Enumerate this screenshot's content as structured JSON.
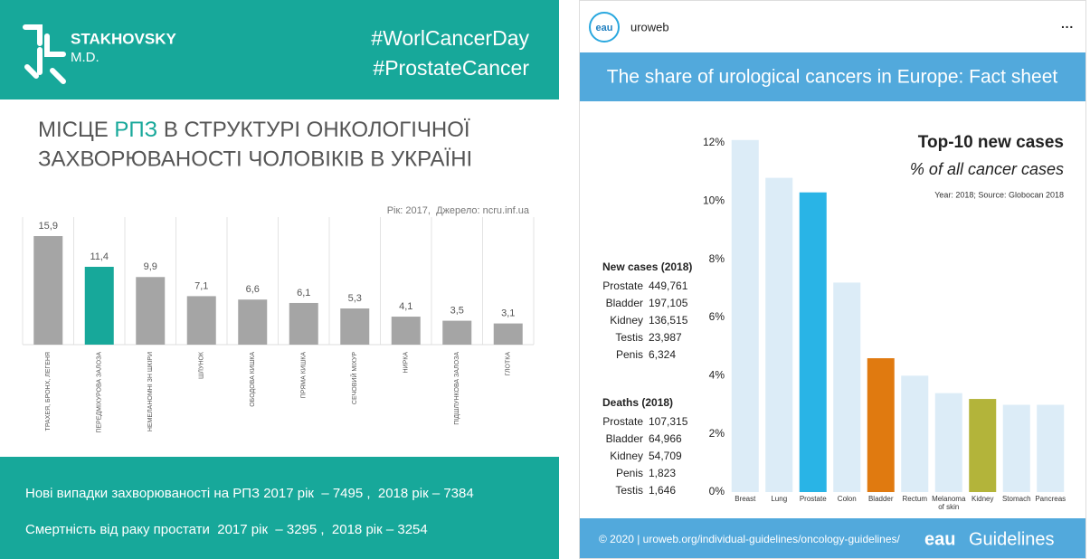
{
  "left_post": {
    "logo": {
      "name": "STAKHOVSKY",
      "suffix": "M.D."
    },
    "hashtags": [
      "#WorlCancerDay",
      "#ProstateCancer"
    ],
    "heading": {
      "line1_before": "МІСЦЕ ",
      "highlight": "РПЗ",
      "line1_after": " В СТРУКТУРІ ОНКОЛОГІЧНОЇ",
      "line2": "ЗАХВОРЮВАНОСТІ ЧОЛОВІКІВ В УКРАЇНІ"
    },
    "source": "Рік: 2017,  Джерело: ncru.inf.ua",
    "footer_lines": [
      "Нові випадки захворюваності на РПЗ 2017 рік  – 7495 ,  2018 рік – 7384",
      "Смертність від раку простати  2017 рік  – 3295 ,  2018 рік – 3254"
    ]
  },
  "right_post": {
    "account": {
      "avatar": "eau",
      "name": "uroweb",
      "menu": "···"
    },
    "banner": "The share of urological cancers in Europe: Fact sheet",
    "new_cases": {
      "title": "New cases (2018)",
      "rows": [
        [
          "Prostate",
          "449,761"
        ],
        [
          "Bladder",
          "197,105"
        ],
        [
          "Kidney",
          "136,515"
        ],
        [
          "Testis",
          "23,987"
        ],
        [
          "Penis",
          "6,324"
        ]
      ]
    },
    "deaths": {
      "title": "Deaths (2018)",
      "rows": [
        [
          "Prostate",
          "107,315"
        ],
        [
          "Bladder",
          "64,966"
        ],
        [
          "Kidney",
          "54,709"
        ],
        [
          "Penis",
          "1,823"
        ],
        [
          "Testis",
          "1,646"
        ]
      ]
    },
    "footer": {
      "credit": "© 2020 | uroweb.org/individual-guidelines/oncology-guidelines/",
      "brand_prefix": "eau",
      "brand": "Guidelines"
    }
  },
  "chart_data": [
    {
      "type": "bar",
      "categories": [
        "ТРАХЕЯ, БРОНХ, ЛЕГЕНЯ",
        "ПЕРЕДМІХУРОВА ЗАЛОЗА",
        "НЕМЕЛАНОМНІ ЗН ШКІРИ",
        "ШЛУНОК",
        "ОБОДОВА КИШКА",
        "ПРЯМА КИШКА",
        "СЕЧОВИЙ МІХУР",
        "НИРКА",
        "ПІДШЛУНКОВА ЗАЛОЗА",
        "ГЛОТКА"
      ],
      "values": [
        15.9,
        11.4,
        9.9,
        7.1,
        6.6,
        6.1,
        5.3,
        4.1,
        3.5,
        3.1
      ],
      "value_labels": [
        "15,9",
        "11,4",
        "9,9",
        "7,1",
        "6,6",
        "6,1",
        "5,3",
        "4,1",
        "3,5",
        "3,1"
      ],
      "colors": [
        "#a5a5a5",
        "#17a89a",
        "#a5a5a5",
        "#a5a5a5",
        "#a5a5a5",
        "#a5a5a5",
        "#a5a5a5",
        "#a5a5a5",
        "#a5a5a5",
        "#a5a5a5"
      ]
    },
    {
      "type": "bar",
      "title": "Top-10 new cases",
      "subtitle": "% of all cancer cases",
      "note": "Year: 2018; Source: Globocan 2018",
      "categories": [
        "Breast",
        "Lung",
        "Prostate",
        "Colon",
        "Bladder",
        "Rectum",
        "Melanoma of skin",
        "Kidney",
        "Stomach",
        "Pancreas"
      ],
      "values": [
        12.1,
        10.8,
        10.3,
        7.2,
        4.6,
        4.0,
        3.4,
        3.2,
        3.0,
        3.0
      ],
      "colors": [
        "#dcecf7",
        "#dcecf7",
        "#29b4e6",
        "#dcecf7",
        "#e07a10",
        "#dcecf7",
        "#dcecf7",
        "#b3b43a",
        "#dcecf7",
        "#dcecf7"
      ],
      "ylim": [
        0,
        12
      ],
      "yticks": [
        {
          "value": 0,
          "label": "0%"
        },
        {
          "value": 2,
          "label": "2%"
        },
        {
          "value": 4,
          "label": "4%"
        },
        {
          "value": 6,
          "label": "6%"
        },
        {
          "value": 8,
          "label": "8%"
        },
        {
          "value": 10,
          "label": "10%"
        },
        {
          "value": 12,
          "label": "12%"
        }
      ]
    }
  ]
}
